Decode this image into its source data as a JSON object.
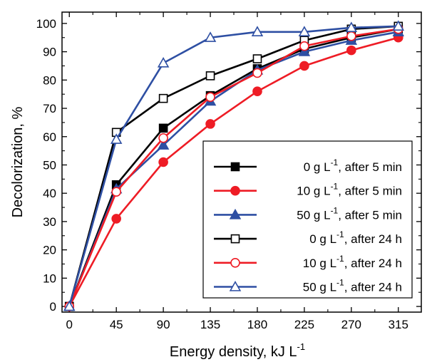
{
  "chart_data": {
    "type": "line",
    "xlabel": "Energy density, kJ L",
    "xlabel_sup": "-1",
    "ylabel": "Decolorization, %",
    "xlim": [
      -7,
      337
    ],
    "ylim": [
      -2,
      104
    ],
    "x": [
      0,
      45,
      90,
      135,
      180,
      225,
      270,
      315
    ],
    "x_ticks": [
      0,
      45,
      90,
      135,
      180,
      225,
      270,
      315
    ],
    "y_ticks": [
      0,
      10,
      20,
      30,
      40,
      50,
      60,
      70,
      80,
      90,
      100
    ],
    "grid": false,
    "legend_position": "lower-right",
    "series": [
      {
        "name_pre": "0 g L",
        "name_sup": "-1",
        "name_post": ", after 5 min",
        "color": "#000000",
        "marker": "square",
        "filled": true,
        "values": [
          0,
          43,
          63,
          74.5,
          84,
          91,
          95,
          98
        ]
      },
      {
        "name_pre": "10 g L",
        "name_sup": "-1",
        "name_post": ", after 5 min",
        "color": "#ee1c25",
        "marker": "circle",
        "filled": true,
        "values": [
          0,
          31,
          51,
          64.5,
          76,
          85,
          90.5,
          95
        ]
      },
      {
        "name_pre": "50 g L",
        "name_sup": "-1",
        "name_post": ", after 5 min",
        "color": "#2e4fa3",
        "marker": "triangle",
        "filled": true,
        "values": [
          0,
          41.5,
          57,
          72.5,
          83.5,
          90,
          94,
          97
        ]
      },
      {
        "name_pre": "0 g L",
        "name_sup": "-1",
        "name_post": ", after 24 h",
        "color": "#000000",
        "marker": "square",
        "filled": false,
        "values": [
          0,
          61.5,
          73.5,
          81.5,
          87.5,
          94,
          98,
          99
        ]
      },
      {
        "name_pre": "10 g L",
        "name_sup": "-1",
        "name_post": ", after 24 h",
        "color": "#ee1c25",
        "marker": "circle",
        "filled": false,
        "values": [
          0,
          40.5,
          59.5,
          74,
          82.5,
          92,
          95.5,
          98
        ]
      },
      {
        "name_pre": "50 g L",
        "name_sup": "-1",
        "name_post": ", after 24 h",
        "color": "#2e4fa3",
        "marker": "triangle",
        "filled": false,
        "values": [
          0,
          59,
          86,
          95,
          97,
          97,
          98.5,
          99
        ]
      }
    ]
  }
}
